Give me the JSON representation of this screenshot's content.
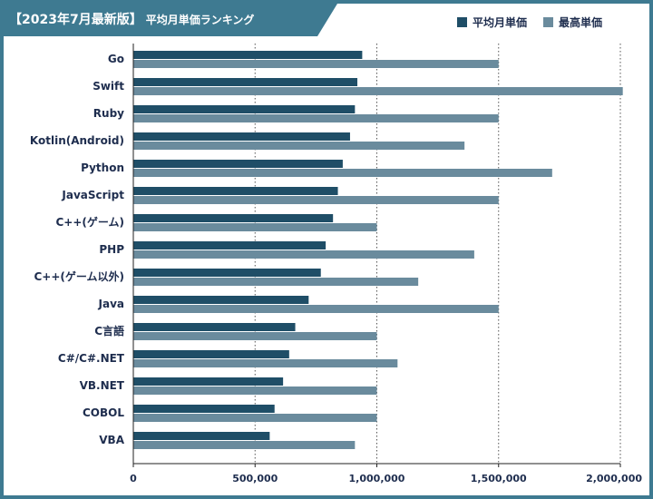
{
  "header": {
    "badge": "【2023年7月最新版】",
    "subtitle": "平均月単価ランキング"
  },
  "colors": {
    "frame": "#3e7a91",
    "avg_bar": "#1f4e67",
    "max_bar": "#6a8b9d",
    "text": "#1e2d4e"
  },
  "chart_data": {
    "type": "bar",
    "orientation": "horizontal",
    "categories": [
      "Go",
      "Swift",
      "Ruby",
      "Kotlin(Android)",
      "Python",
      "JavaScript",
      "C++(ゲーム)",
      "PHP",
      "C++(ゲーム以外)",
      "Java",
      "C言語",
      "C#/C#.NET",
      "VB.NET",
      "COBOL",
      "VBA"
    ],
    "series": [
      {
        "name": "平均月単価",
        "color": "#1f4e67",
        "values": [
          940000,
          920000,
          910000,
          890000,
          860000,
          840000,
          820000,
          790000,
          770000,
          720000,
          665000,
          640000,
          615000,
          580000,
          560000
        ]
      },
      {
        "name": "最高単価",
        "color": "#6a8b9d",
        "values": [
          1500000,
          2010000,
          1500000,
          1360000,
          1720000,
          1500000,
          1000000,
          1400000,
          1170000,
          1500000,
          1000000,
          1085000,
          1000000,
          1000000,
          910000
        ]
      }
    ],
    "xlim": [
      0,
      2000000
    ],
    "x_ticks": [
      0,
      500000,
      1000000,
      1500000,
      2000000
    ],
    "x_tick_labels": [
      "0",
      "500,000",
      "1,000,000",
      "1,500,000",
      "2,000,000"
    ],
    "grid": "vertical dotted at each tick",
    "legend_position": "top-right"
  }
}
